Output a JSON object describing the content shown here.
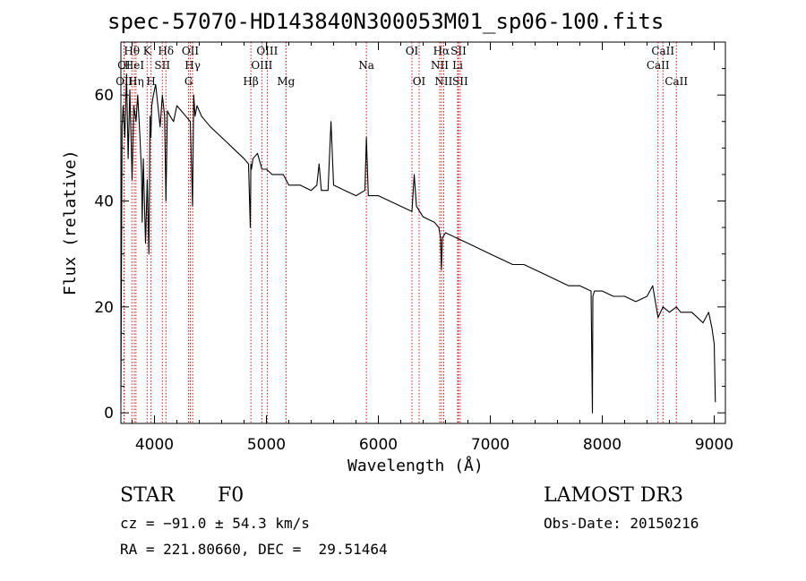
{
  "title": "spec-57070-HD143840N300053M01_sp06-100.fits",
  "info": {
    "class": "STAR",
    "subclass": "F0",
    "survey": "LAMOST DR3",
    "cz": "cz = −91.0 ± 54.3 km/s",
    "obs_date": "Obs-Date: 20150216",
    "radec": "RA = 221.80660, DEC =  29.51464"
  },
  "colors": {
    "line_markers": "#cc0000",
    "spectrum": "#000000"
  },
  "chart_data": {
    "type": "line",
    "title": "spec-57070-HD143840N300053M01_sp06-100.fits",
    "xlabel": "Wavelength (Å)",
    "ylabel": "Flux (relative)",
    "xlim": [
      3700,
      9100
    ],
    "ylim": [
      -2,
      70
    ],
    "xticks": [
      4000,
      5000,
      6000,
      7000,
      8000,
      9000
    ],
    "yticks": [
      0,
      20,
      40,
      60
    ],
    "spectrum": {
      "x": [
        3700,
        3710,
        3720,
        3735,
        3750,
        3765,
        3780,
        3800,
        3815,
        3835,
        3850,
        3870,
        3885,
        3890,
        3900,
        3920,
        3935,
        3950,
        3960,
        3968,
        3975,
        3990,
        4010,
        4030,
        4050,
        4070,
        4090,
        4102,
        4115,
        4140,
        4170,
        4200,
        4240,
        4280,
        4320,
        4340,
        4350,
        4362,
        4380,
        4420,
        4460,
        4500,
        4550,
        4600,
        4650,
        4700,
        4750,
        4800,
        4840,
        4856,
        4861,
        4866,
        4880,
        4920,
        4960,
        5000,
        5050,
        5100,
        5150,
        5200,
        5300,
        5400,
        5450,
        5470,
        5490,
        5550,
        5577,
        5600,
        5700,
        5800,
        5880,
        5893,
        5910,
        5950,
        6000,
        6100,
        6200,
        6300,
        6320,
        6340,
        6400,
        6500,
        6540,
        6555,
        6563,
        6572,
        6600,
        6700,
        6800,
        6900,
        7000,
        7100,
        7200,
        7300,
        7400,
        7500,
        7600,
        7700,
        7800,
        7900,
        7912,
        7916,
        7930,
        8000,
        8100,
        8200,
        8300,
        8400,
        8450,
        8498,
        8542,
        8600,
        8662,
        8700,
        8800,
        8850,
        8900,
        8950,
        8980,
        9000,
        9010
      ],
      "y": [
        2,
        54,
        58,
        52,
        64,
        48,
        61,
        44,
        58,
        55,
        60,
        52,
        45,
        36,
        48,
        32,
        44,
        30,
        56,
        52,
        58,
        60,
        62,
        58,
        54,
        60,
        56,
        40,
        57,
        56,
        55,
        58,
        57,
        56,
        55,
        39,
        60,
        56,
        58,
        56,
        55,
        54,
        53,
        52,
        51,
        50,
        49,
        48,
        47,
        35,
        47,
        46,
        48,
        49,
        46,
        46,
        45,
        45,
        45,
        43,
        43,
        42,
        43,
        47,
        42,
        42,
        55,
        43,
        42,
        41,
        42,
        52,
        41,
        41,
        41,
        40,
        39,
        38,
        45,
        39,
        37,
        36,
        35,
        33,
        27,
        33,
        34,
        33,
        32,
        31,
        30,
        29,
        28,
        28,
        27,
        26,
        25,
        24,
        24,
        23,
        0,
        22,
        23,
        23,
        22,
        22,
        21,
        22,
        24,
        18,
        20,
        19,
        20,
        19,
        19,
        18,
        17,
        19,
        16,
        13,
        2
      ]
    },
    "lines": [
      {
        "label": "OI",
        "wavelength": 3727,
        "row": 1
      },
      {
        "label": "OII",
        "wavelength": 3730,
        "row": 2
      },
      {
        "label": "Hθ",
        "wavelength": 3798,
        "row": 0
      },
      {
        "label": "HeI",
        "wavelength": 3820,
        "row": 1
      },
      {
        "label": "Hη",
        "wavelength": 3835,
        "row": 2
      },
      {
        "label": "K",
        "wavelength": 3934,
        "row": 0
      },
      {
        "label": "SII",
        "wavelength": 4070,
        "row": 1
      },
      {
        "label": "H",
        "wavelength": 3969,
        "row": 2
      },
      {
        "label": "Hδ",
        "wavelength": 4102,
        "row": 0
      },
      {
        "label": "OII",
        "wavelength": 4320,
        "row": 0
      },
      {
        "label": "Hγ",
        "wavelength": 4341,
        "row": 1
      },
      {
        "label": "G",
        "wavelength": 4305,
        "row": 2
      },
      {
        "label": "Hβ",
        "wavelength": 4861,
        "row": 2
      },
      {
        "label": "OIII",
        "wavelength": 5007,
        "row": 0
      },
      {
        "label": "OIII",
        "wavelength": 4959,
        "row": 1
      },
      {
        "label": "Mg",
        "wavelength": 5175,
        "row": 2
      },
      {
        "label": "Na",
        "wavelength": 5893,
        "row": 1
      },
      {
        "label": "OI",
        "wavelength": 6300,
        "row": 0
      },
      {
        "label": "OI",
        "wavelength": 6364,
        "row": 2
      },
      {
        "label": "Hα",
        "wavelength": 6563,
        "row": 0
      },
      {
        "label": "SII",
        "wavelength": 6716,
        "row": 0
      },
      {
        "label": "NII",
        "wavelength": 6548,
        "row": 1
      },
      {
        "label": "Li",
        "wavelength": 6708,
        "row": 1
      },
      {
        "label": "NII",
        "wavelength": 6583,
        "row": 2
      },
      {
        "label": "SII",
        "wavelength": 6731,
        "row": 2
      },
      {
        "label": "CaII",
        "wavelength": 8542,
        "row": 0
      },
      {
        "label": "CaII",
        "wavelength": 8498,
        "row": 1
      },
      {
        "label": "CaII",
        "wavelength": 8662,
        "row": 2
      }
    ]
  }
}
